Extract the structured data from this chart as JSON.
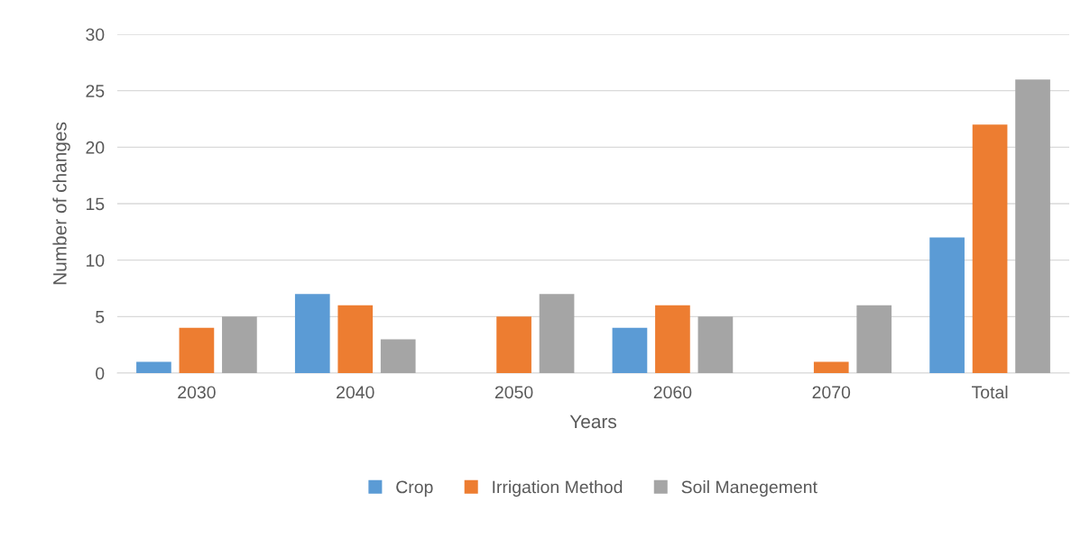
{
  "chart_data": {
    "type": "bar",
    "xlabel": "Years",
    "ylabel": "Number of changes",
    "categories": [
      "2030",
      "2040",
      "2050",
      "2060",
      "2070",
      "Total"
    ],
    "series": [
      {
        "name": "Crop",
        "color": "#5b9bd5",
        "values": [
          1,
          7,
          0,
          4,
          0,
          12
        ]
      },
      {
        "name": "Irrigation Method",
        "color": "#ed7d31",
        "values": [
          4,
          6,
          5,
          6,
          1,
          22
        ]
      },
      {
        "name": "Soil Manegement",
        "color": "#a5a5a5",
        "values": [
          5,
          3,
          7,
          5,
          6,
          26
        ]
      }
    ],
    "ylim": [
      0,
      30
    ],
    "yticks": [
      0,
      5,
      10,
      15,
      20,
      25,
      30
    ],
    "grid": "y",
    "legend": "bottom"
  }
}
